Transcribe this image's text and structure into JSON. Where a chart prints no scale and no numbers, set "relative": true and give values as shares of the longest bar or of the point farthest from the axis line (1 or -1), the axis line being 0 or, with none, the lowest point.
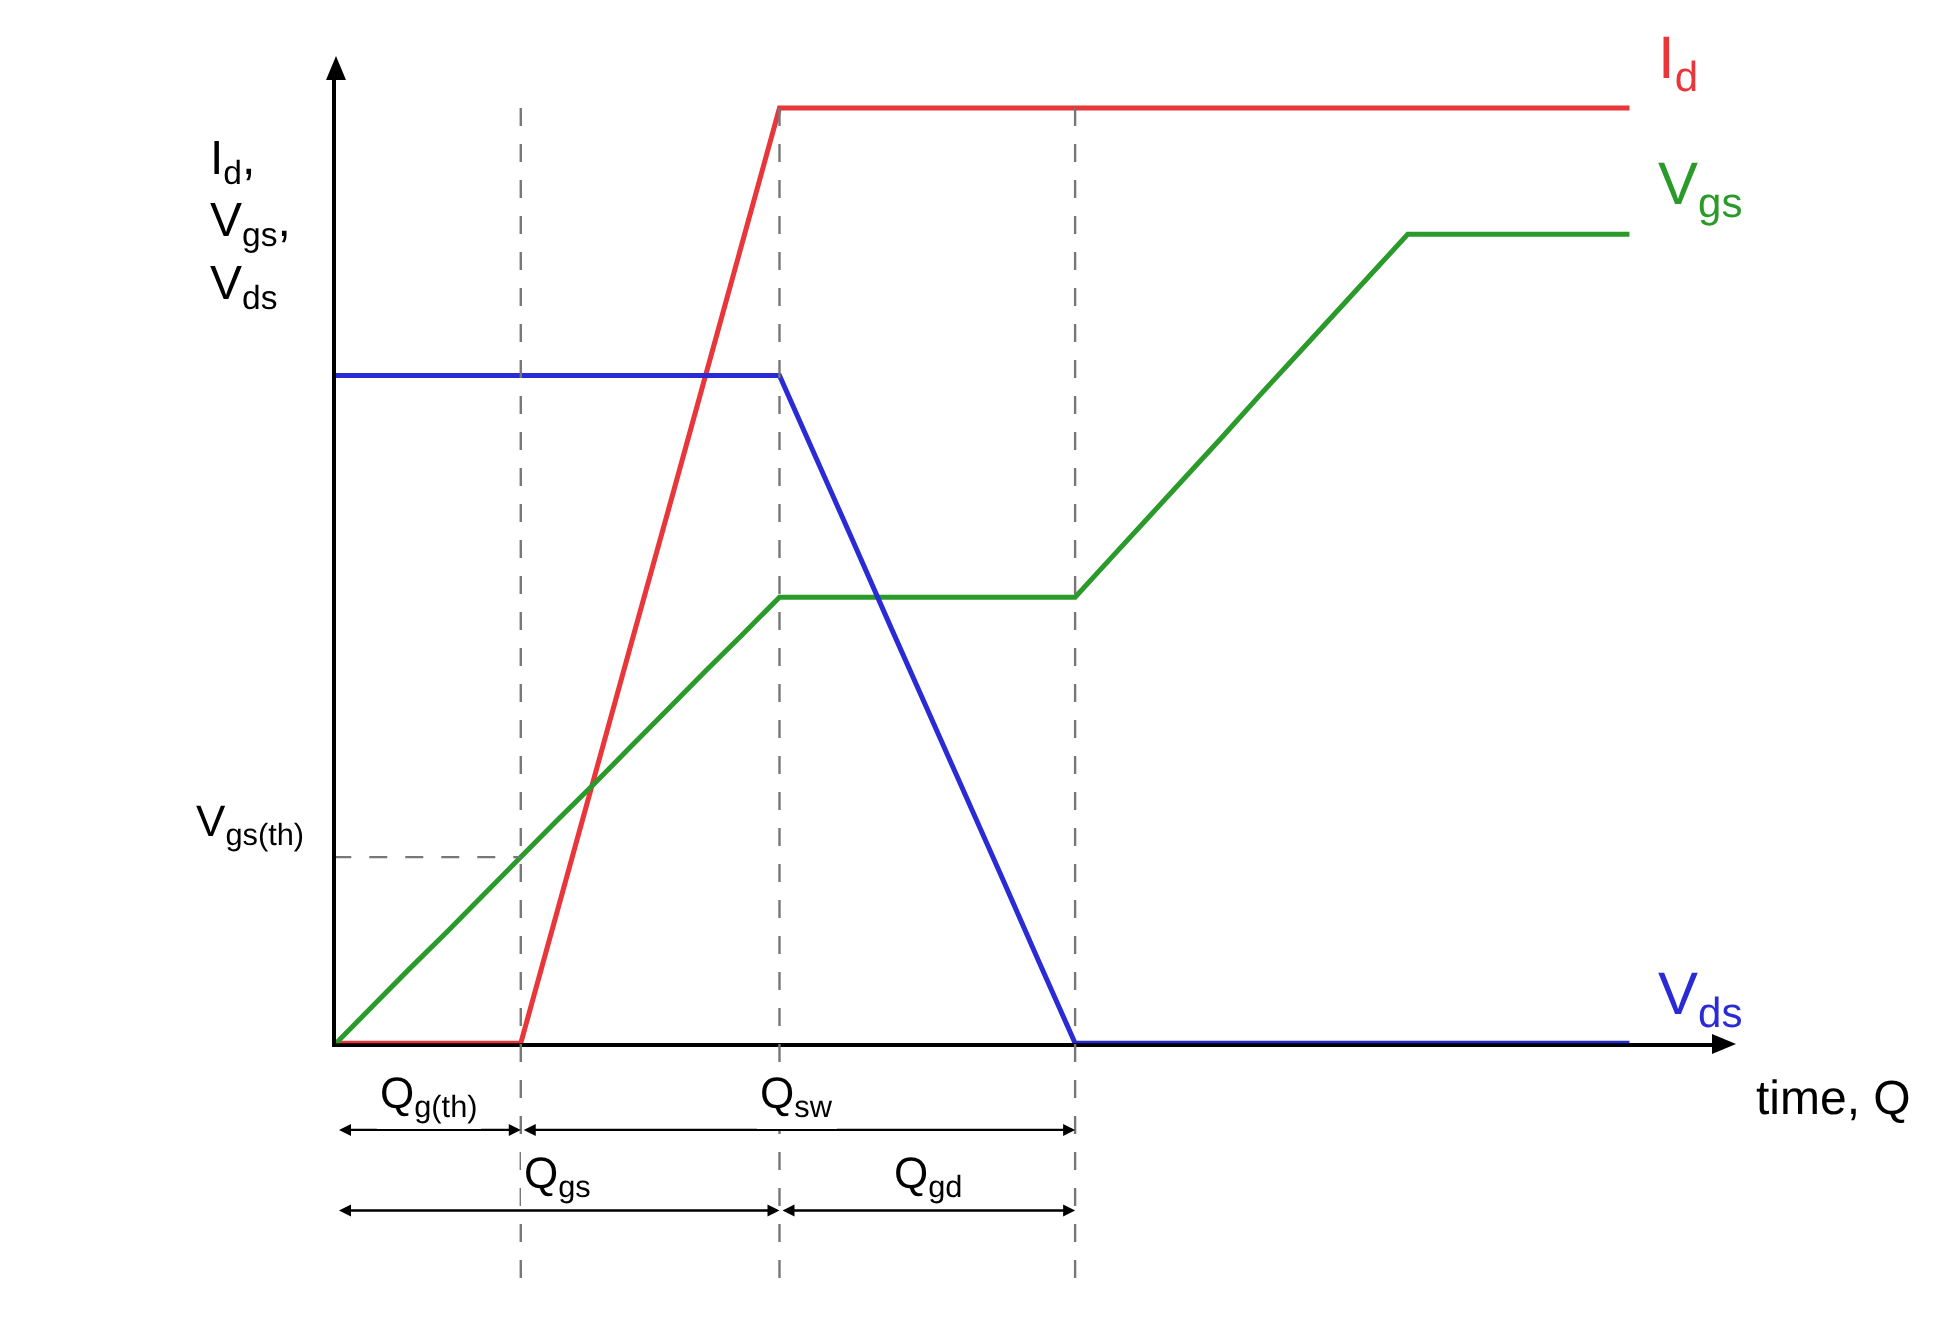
{
  "chart_data": {
    "type": "line",
    "relative": true,
    "grid": true,
    "ylabel": "I$_{d}$,\nV$_{gs}$,\nV$_{ds}$",
    "xlabel": "time, Q",
    "categories": [
      null,
      null,
      null,
      null,
      null,
      null,
      null,
      null,
      null,
      null,
      null,
      null,
      null,
      null,
      null,
      null,
      null,
      null,
      null,
      null,
      null,
      null,
      null,
      null,
      null,
      null,
      null,
      null,
      null,
      null,
      null,
      null,
      null,
      null,
      null,
      null
    ],
    "series": [
      {
        "name": "I$_{d}$",
        "color": "#e8363a",
        "values": [
          0,
          0,
          0,
          0,
          0,
          0,
          0.143,
          0.286,
          0.429,
          0.571,
          0.714,
          0.857,
          1,
          1,
          1,
          1,
          1,
          1,
          1,
          1,
          1,
          1,
          1,
          1,
          1,
          1,
          1,
          1,
          1,
          1,
          1,
          1,
          1,
          1,
          1,
          1
        ]
      },
      {
        "name": "V$_{gs}$",
        "color": "#2a9a2a",
        "values": [
          0,
          0.04,
          0.08,
          0.119,
          0.159,
          0.199,
          0.239,
          0.278,
          0.318,
          0.358,
          0.398,
          0.437,
          0.477,
          0.477,
          0.477,
          0.477,
          0.477,
          0.477,
          0.477,
          0.477,
          0.477,
          0.52,
          0.563,
          0.606,
          0.649,
          0.693,
          0.736,
          0.779,
          0.822,
          0.865,
          0.865,
          0.865,
          0.865,
          0.865,
          0.865,
          0.865
        ]
      },
      {
        "name": "V$_{ds}$",
        "color": "#2b2bd6",
        "values": [
          0.714,
          0.714,
          0.714,
          0.714,
          0.714,
          0.714,
          0.714,
          0.714,
          0.714,
          0.714,
          0.714,
          0.714,
          0.714,
          0.625,
          0.536,
          0.446,
          0.357,
          0.268,
          0.179,
          0.089,
          0,
          0,
          0,
          0,
          0,
          0,
          0,
          0,
          0,
          0,
          0,
          0,
          0,
          0,
          0,
          0
        ]
      }
    ],
    "annotations": [
      "V$_{gs(th)}$",
      "Q$_{g(th)}$",
      "Q$_{sw}$",
      "Q$_{gs}$",
      "Q$_{gd}$"
    ]
  }
}
